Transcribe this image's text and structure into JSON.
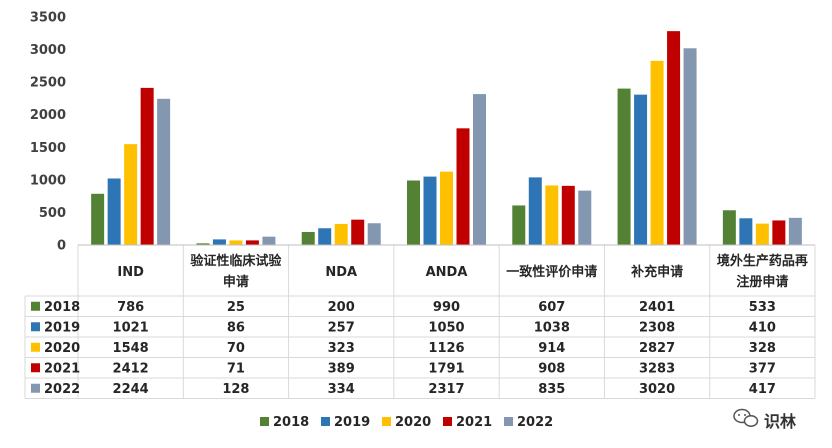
{
  "chart_data": {
    "type": "bar",
    "categories": [
      "IND",
      "验证性临床试验申请",
      "NDA",
      "ANDA",
      "一致性评价申请",
      "补充申请",
      "境外生产药品再注册申请"
    ],
    "series": [
      {
        "name": "2018",
        "color": "#548235",
        "values": [
          786,
          25,
          200,
          990,
          607,
          2401,
          533
        ]
      },
      {
        "name": "2019",
        "color": "#2E75B6",
        "values": [
          1021,
          86,
          257,
          1050,
          1038,
          2308,
          410
        ]
      },
      {
        "name": "2020",
        "color": "#FFC000",
        "values": [
          1548,
          70,
          323,
          1126,
          914,
          2827,
          328
        ]
      },
      {
        "name": "2021",
        "color": "#C00000",
        "values": [
          2412,
          71,
          389,
          1791,
          908,
          3283,
          377
        ]
      },
      {
        "name": "2022",
        "color": "#8497B0",
        "values": [
          2244,
          128,
          334,
          2317,
          835,
          3020,
          417
        ]
      }
    ],
    "ylim": [
      0,
      3500
    ],
    "yticks": [
      0,
      500,
      1000,
      1500,
      2000,
      2500,
      3000,
      3500
    ],
    "grid": false,
    "data_table": true,
    "legend_position": "bottom"
  },
  "watermark": {
    "text": "识林",
    "icon": "wechat-icon"
  }
}
